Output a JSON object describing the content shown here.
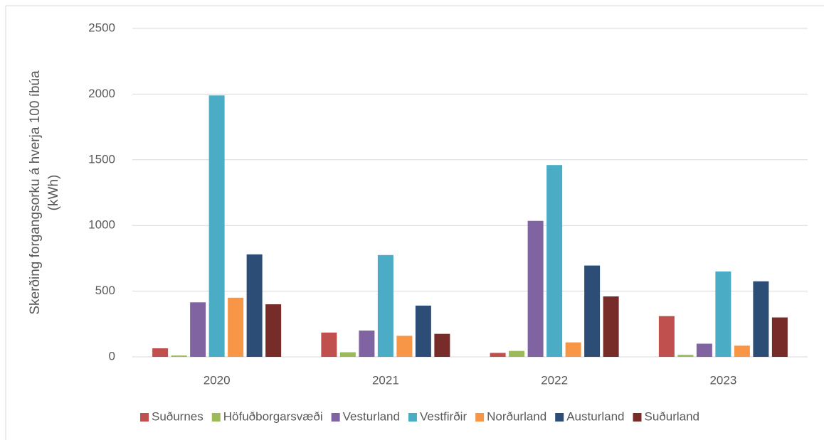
{
  "chart_data": {
    "type": "bar",
    "ylabel": [
      "Skerðing forgangsorku á hverja 100 íbúa",
      "(kWh)"
    ],
    "categories": [
      "2020",
      "2021",
      "2022",
      "2023"
    ],
    "series": [
      {
        "name": "Suðurnes",
        "color": "#c0504d",
        "values": [
          65,
          185,
          30,
          310
        ]
      },
      {
        "name": "Höfuðborgarsvæði",
        "color": "#9bbb59",
        "values": [
          10,
          35,
          45,
          15
        ]
      },
      {
        "name": "Vesturland",
        "color": "#8064a2",
        "values": [
          415,
          200,
          1035,
          100
        ]
      },
      {
        "name": "Vestfirðir",
        "color": "#4bacc6",
        "values": [
          1990,
          775,
          1460,
          650
        ]
      },
      {
        "name": "Norðurland",
        "color": "#f79646",
        "values": [
          450,
          160,
          110,
          85
        ]
      },
      {
        "name": "Austurland",
        "color": "#2c4d75",
        "values": [
          780,
          390,
          695,
          575
        ]
      },
      {
        "name": "Suðurland",
        "color": "#772c2a",
        "values": [
          400,
          175,
          460,
          300
        ]
      }
    ],
    "ylim": [
      0,
      2500
    ],
    "yticks": [
      0,
      500,
      1000,
      1500,
      2000,
      2500
    ],
    "grid": true,
    "legend": "bottom"
  }
}
